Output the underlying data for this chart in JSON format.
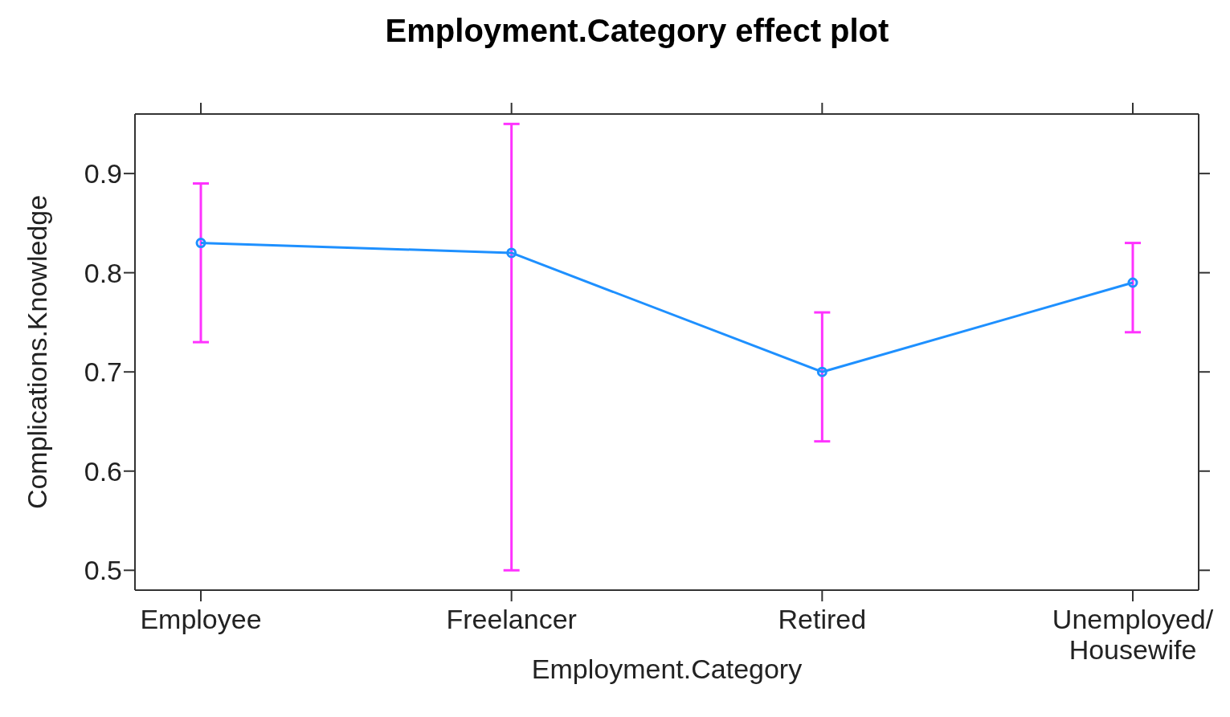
{
  "chart_data": {
    "type": "line",
    "title": "Employment.Category effect plot",
    "xlabel": "Employment.Category",
    "ylabel": "Complications.Knowledge",
    "categories": [
      "Employee",
      "Freelancer",
      "Retired",
      "Unemployed/Housewife"
    ],
    "series": [
      {
        "color": "#1e90ff",
        "values": [
          0.83,
          0.82,
          0.7,
          0.79
        ],
        "errors": [
          [
            0.73,
            0.89
          ],
          [
            0.5,
            0.95
          ],
          [
            0.63,
            0.76
          ],
          [
            0.74,
            0.83
          ]
        ]
      }
    ],
    "ylim": [
      0.48,
      0.96
    ],
    "yticks": [
      0.5,
      0.6,
      0.7,
      0.8,
      0.9
    ],
    "grid": false,
    "legend": false,
    "marker": "circle",
    "line_style": "solid"
  }
}
